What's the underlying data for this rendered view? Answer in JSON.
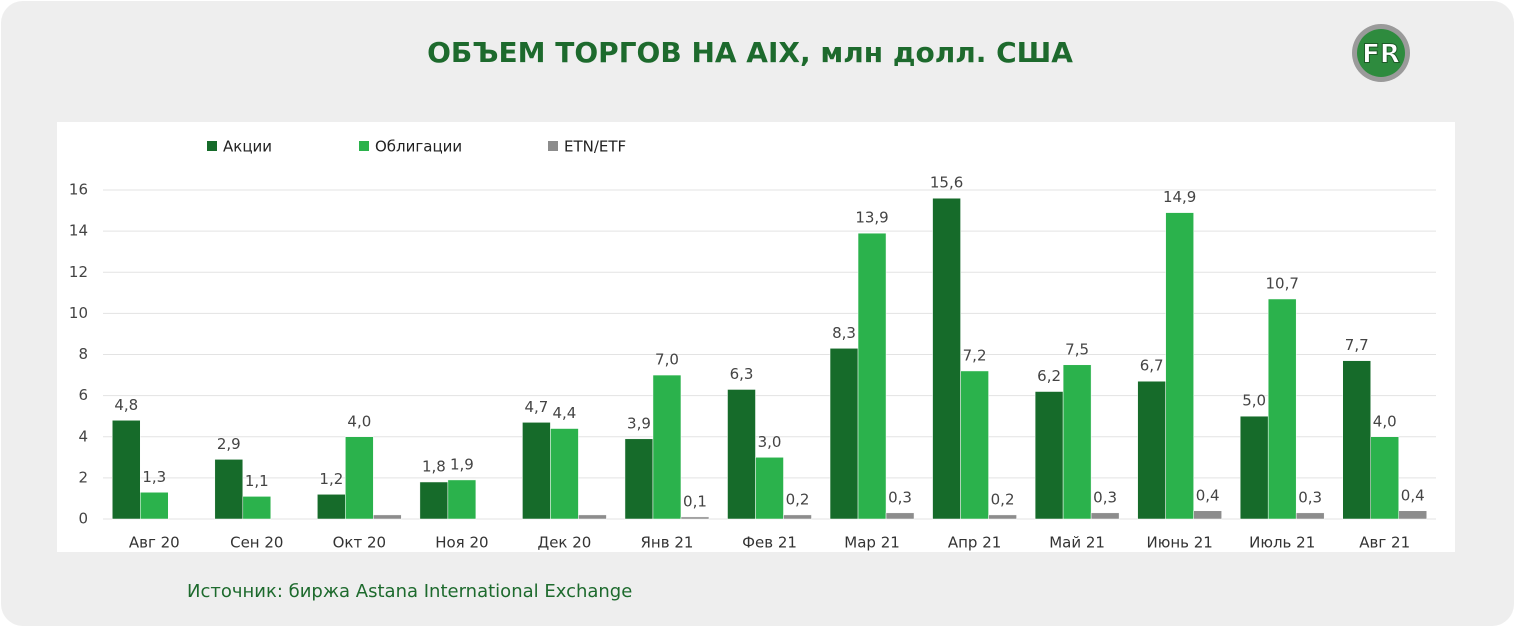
{
  "chart_data": {
    "type": "bar",
    "title": "ОБЪЕМ ТОРГОВ НА AIX,  млн долл. США",
    "logo": "FR",
    "source": "Источник: биржа Astana International Exchange",
    "categories": [
      "Авг 20",
      "Сен 20",
      "Окт 20",
      "Ноя 20",
      "Дек 20",
      "Янв 21",
      "Фев 21",
      "Мар 21",
      "Апр 21",
      "Май 21",
      "Июнь 21",
      "Июль 21",
      "Авг 21"
    ],
    "series": [
      {
        "name": "Акции",
        "color": "#166b2a",
        "values": [
          4.8,
          2.9,
          1.2,
          1.8,
          4.7,
          3.9,
          6.3,
          8.3,
          15.6,
          6.2,
          6.7,
          5.0,
          7.7
        ],
        "value_labels": [
          "4,8",
          "2,9",
          "1,2",
          "1,8",
          "4,7",
          "3,9",
          "6,3",
          "8,3",
          "15,6",
          "6,2",
          "6,7",
          "5,0",
          "7,7"
        ]
      },
      {
        "name": "Облигации",
        "color": "#2bb24c",
        "values": [
          1.3,
          1.1,
          4.0,
          1.9,
          4.4,
          7.0,
          3.0,
          13.9,
          7.2,
          7.5,
          14.9,
          10.7,
          4.0
        ],
        "value_labels": [
          "1,3",
          "1,1",
          "4,0",
          "1,9",
          "4,4",
          "7,0",
          "3,0",
          "13,9",
          "7,2",
          "7,5",
          "14,9",
          "10,7",
          "4,0"
        ]
      },
      {
        "name": "ETN/ETF",
        "color": "#8c8c8c",
        "values": [
          null,
          null,
          0.2,
          null,
          0.2,
          0.1,
          0.2,
          0.3,
          0.2,
          0.3,
          0.4,
          0.3,
          0.4
        ],
        "value_labels": [
          null,
          null,
          null,
          null,
          null,
          "0,1",
          "0,2",
          "0,3",
          "0,2",
          "0,3",
          "0,4",
          "0,3",
          "0,4"
        ]
      }
    ],
    "ylim": [
      0,
      16
    ],
    "yticks": [
      0,
      2,
      4,
      6,
      8,
      10,
      12,
      14,
      16
    ],
    "grid": true,
    "legend": "top"
  }
}
